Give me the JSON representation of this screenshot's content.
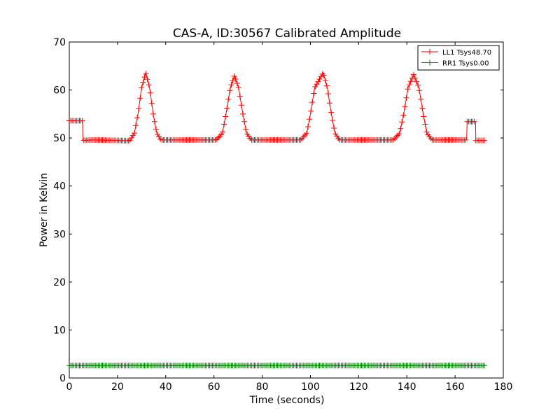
{
  "chart_data": {
    "type": "line",
    "title": "CAS-A, ID:30567 Calibrated Amplitude",
    "xlabel": "Time (seconds)",
    "ylabel": "Power in Kelvin",
    "xlim": [
      0,
      180
    ],
    "ylim": [
      0,
      70
    ],
    "xticks": [
      0,
      20,
      40,
      60,
      80,
      100,
      120,
      140,
      160,
      180
    ],
    "yticks": [
      0,
      10,
      20,
      30,
      40,
      50,
      60,
      70
    ],
    "grid": false,
    "legend_position": "top-right",
    "marker": "+",
    "series": [
      {
        "name": "LL1 Tsys48.70",
        "color": "#ff0000",
        "points": [
          [
            0,
            53.6
          ],
          [
            5.5,
            53.6
          ],
          [
            5.6,
            49.5
          ],
          [
            10,
            49.6
          ],
          [
            20,
            49.5
          ],
          [
            25,
            49.4
          ],
          [
            27,
            51
          ],
          [
            28.5,
            55
          ],
          [
            30,
            60.5
          ],
          [
            31.7,
            63.6
          ],
          [
            33.3,
            60.5
          ],
          [
            34.8,
            55
          ],
          [
            36.3,
            51
          ],
          [
            38,
            49.6
          ],
          [
            50,
            49.6
          ],
          [
            61,
            49.6
          ],
          [
            63.5,
            51
          ],
          [
            65,
            55
          ],
          [
            66.8,
            60.5
          ],
          [
            68.5,
            63
          ],
          [
            70.2,
            60.5
          ],
          [
            72,
            55
          ],
          [
            73.5,
            51
          ],
          [
            75.5,
            49.6
          ],
          [
            85,
            49.6
          ],
          [
            96,
            49.6
          ],
          [
            98.5,
            51
          ],
          [
            100,
            55
          ],
          [
            101.8,
            60.5
          ],
          [
            105.3,
            63.6
          ],
          [
            107,
            60.5
          ],
          [
            108.7,
            55
          ],
          [
            110.2,
            51
          ],
          [
            112,
            49.6
          ],
          [
            125,
            49.6
          ],
          [
            134.5,
            49.6
          ],
          [
            137,
            51
          ],
          [
            138.7,
            55
          ],
          [
            140.5,
            60.5
          ],
          [
            142.8,
            63.2
          ],
          [
            145,
            60.5
          ],
          [
            146.8,
            55
          ],
          [
            148.3,
            51
          ],
          [
            150.5,
            49.6
          ],
          [
            160,
            49.6
          ],
          [
            164.8,
            49.6
          ],
          [
            165,
            53.4
          ],
          [
            168.5,
            53.4
          ],
          [
            168.6,
            49.5
          ],
          [
            172.5,
            49.5
          ]
        ]
      },
      {
        "name": "RR1 Tsys0.00",
        "color": "#008000",
        "points": [
          [
            0,
            2.6
          ],
          [
            172.5,
            2.6
          ]
        ]
      }
    ]
  }
}
